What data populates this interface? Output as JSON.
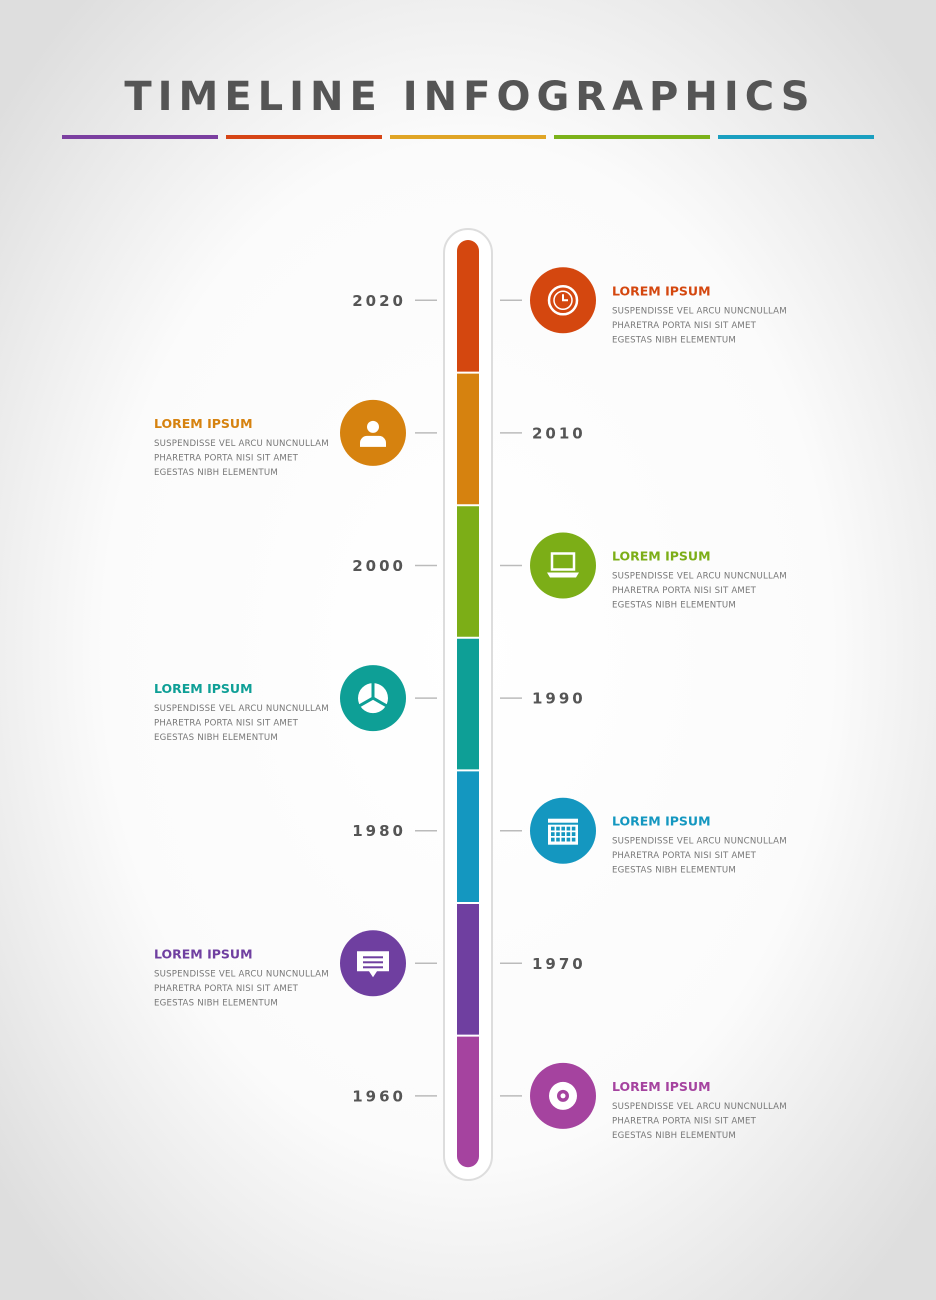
{
  "title": "TIMELINE INFOGRAPHICS",
  "items": [
    {
      "year": "2020",
      "heading": "LOREM IPSUM",
      "color": "#d4470f",
      "lines": [
        "SUSPENDISSE VEL ARCU NUNCNULLAM",
        "PHARETRA PORTA NISI SIT AMET",
        "EGESTAS NIBH ELEMENTUM"
      ]
    },
    {
      "year": "2010",
      "heading": "LOREM IPSUM",
      "color": "#d6820f",
      "lines": [
        "SUSPENDISSE VEL ARCU NUNCNULLAM",
        "PHARETRA PORTA NISI SIT AMET",
        "EGESTAS NIBH ELEMENTUM"
      ]
    },
    {
      "year": "2000",
      "heading": "LOREM IPSUM",
      "color": "#7cae17",
      "lines": [
        "SUSPENDISSE VEL ARCU NUNCNULLAM",
        "PHARETRA PORTA NISI SIT AMET",
        "EGESTAS NIBH ELEMENTUM"
      ]
    },
    {
      "year": "1990",
      "heading": "LOREM IPSUM",
      "color": "#0e9f96",
      "lines": [
        "SUSPENDISSE VEL ARCU NUNCNULLAM",
        "PHARETRA PORTA NISI SIT AMET",
        "EGESTAS NIBH ELEMENTUM"
      ]
    },
    {
      "year": "1980",
      "heading": "LOREM IPSUM",
      "color": "#1497c0",
      "lines": [
        "SUSPENDISSE VEL ARCU NUNCNULLAM",
        "PHARETRA PORTA NISI SIT AMET",
        "EGESTAS NIBH ELEMENTUM"
      ]
    },
    {
      "year": "1970",
      "heading": "LOREM IPSUM",
      "color": "#6f3fa0",
      "lines": [
        "SUSPENDISSE VEL ARCU NUNCNULLAM",
        "PHARETRA PORTA NISI SIT AMET",
        "EGESTAS NIBH ELEMENTUM"
      ]
    },
    {
      "year": "1960",
      "heading": "LOREM IPSUM",
      "color": "#a5439f",
      "lines": [
        "SUSPENDISSE VEL ARCU NUNCNULLAM",
        "PHARETRA PORTA NISI SIT AMET",
        "EGESTAS NIBH ELEMENTUM"
      ]
    }
  ]
}
